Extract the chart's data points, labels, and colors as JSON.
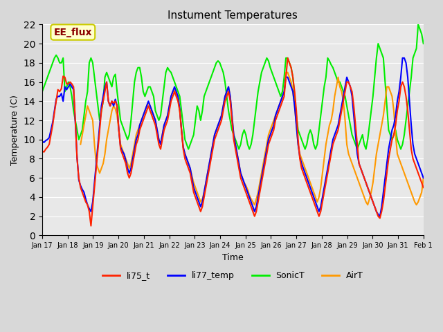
{
  "title": "Instument Temperatures",
  "xlabel": "Time",
  "ylabel": "Temperature (C)",
  "ylim": [
    0,
    22
  ],
  "yticks": [
    0,
    2,
    4,
    6,
    8,
    10,
    12,
    14,
    16,
    18,
    20,
    22
  ],
  "xtick_labels": [
    "Jan 17",
    "Jan 18",
    "Jan 19",
    "Jan 20",
    "Jan 21",
    "Jan 22",
    "Jan 23",
    "Jan 24",
    "Jan 25",
    "Jan 26",
    "Jan 27",
    "Jan 28",
    "Jan 29",
    "Jan 30",
    "Jan 31",
    "Feb 1"
  ],
  "bg_color": "#d8d8d8",
  "plot_bg_color": "#e8e8e8",
  "annotation_text": "EE_flux",
  "annotation_color": "#8b0000",
  "annotation_bg": "#ffffcc",
  "annotation_border": "#cccc00",
  "line_colors": {
    "li75_t": "#ff2200",
    "li77_temp": "#0000ff",
    "SonicT": "#00ee00",
    "AirT": "#ff9900"
  },
  "series": {
    "li75_t": [
      8.8,
      8.7,
      9.0,
      9.2,
      9.5,
      10.5,
      11.5,
      12.8,
      14.0,
      15.2,
      15.0,
      15.3,
      16.6,
      16.5,
      15.8,
      15.8,
      16.0,
      15.8,
      15.5,
      12.0,
      8.0,
      6.0,
      5.0,
      4.5,
      4.0,
      3.5,
      3.2,
      2.5,
      1.0,
      3.0,
      5.0,
      7.0,
      9.0,
      11.0,
      13.0,
      14.0,
      15.0,
      16.0,
      14.0,
      13.5,
      14.0,
      13.8,
      14.0,
      13.5,
      11.0,
      9.0,
      8.5,
      8.0,
      7.5,
      6.5,
      6.0,
      6.5,
      7.5,
      8.5,
      9.5,
      10.0,
      11.0,
      11.5,
      12.0,
      12.5,
      13.0,
      13.5,
      13.0,
      12.5,
      12.0,
      11.5,
      10.5,
      9.5,
      9.0,
      10.0,
      11.0,
      11.5,
      12.0,
      13.0,
      14.0,
      14.5,
      15.0,
      14.5,
      14.0,
      13.0,
      11.0,
      9.0,
      8.0,
      7.5,
      7.0,
      6.5,
      5.5,
      4.5,
      4.0,
      3.5,
      3.0,
      2.5,
      3.0,
      4.0,
      5.0,
      6.0,
      7.0,
      8.0,
      9.0,
      10.0,
      10.5,
      11.0,
      11.5,
      12.0,
      13.0,
      14.0,
      14.5,
      15.0,
      14.0,
      12.0,
      10.0,
      9.0,
      8.0,
      7.0,
      6.0,
      5.5,
      5.0,
      4.5,
      4.0,
      3.5,
      3.0,
      2.5,
      2.0,
      2.5,
      3.5,
      4.5,
      5.5,
      6.5,
      7.5,
      8.5,
      9.5,
      10.0,
      10.5,
      11.0,
      12.0,
      12.5,
      13.0,
      13.5,
      14.0,
      14.5,
      16.5,
      18.5,
      18.0,
      17.5,
      16.5,
      15.0,
      13.0,
      10.0,
      8.0,
      7.0,
      6.5,
      6.0,
      5.5,
      5.0,
      4.5,
      4.0,
      3.5,
      3.0,
      2.5,
      2.0,
      2.5,
      3.5,
      4.5,
      5.5,
      6.5,
      7.5,
      8.5,
      9.5,
      10.0,
      10.5,
      11.0,
      12.0,
      13.0,
      14.0,
      15.0,
      16.0,
      16.0,
      15.5,
      15.0,
      13.5,
      11.5,
      9.5,
      7.5,
      7.0,
      6.5,
      6.0,
      5.5,
      5.0,
      4.5,
      4.0,
      3.5,
      3.0,
      2.5,
      2.0,
      1.8,
      2.5,
      3.5,
      5.0,
      6.5,
      8.0,
      9.0,
      10.0,
      10.5,
      11.5,
      13.0,
      14.0,
      15.5,
      16.0,
      15.5,
      14.5,
      13.0,
      11.0,
      9.0,
      8.0,
      7.5,
      7.0,
      6.5,
      6.0,
      5.5,
      5.0,
      4.5,
      4.0,
      3.5,
      3.2,
      2.8,
      2.5,
      3.0,
      3.5,
      4.0
    ],
    "li77_temp": [
      9.8,
      9.7,
      9.9,
      10.0,
      10.2,
      11.0,
      11.8,
      13.0,
      14.2,
      14.5,
      14.5,
      14.8,
      14.0,
      15.5,
      15.2,
      15.5,
      15.8,
      15.5,
      15.2,
      11.8,
      8.2,
      5.8,
      5.2,
      4.8,
      4.5,
      3.8,
      3.2,
      2.8,
      2.5,
      3.5,
      5.5,
      7.5,
      9.5,
      11.5,
      13.5,
      14.5,
      15.5,
      16.0,
      14.0,
      13.5,
      14.0,
      13.5,
      14.2,
      13.5,
      11.0,
      9.2,
      8.8,
      8.5,
      7.8,
      7.0,
      6.5,
      7.0,
      8.0,
      9.0,
      10.0,
      10.5,
      11.5,
      12.0,
      12.5,
      13.0,
      13.5,
      14.0,
      13.5,
      13.0,
      12.5,
      12.0,
      11.0,
      10.0,
      9.5,
      10.5,
      11.5,
      12.0,
      12.5,
      13.5,
      14.5,
      15.0,
      15.5,
      15.0,
      14.5,
      13.2,
      11.0,
      9.2,
      8.5,
      8.0,
      7.5,
      7.0,
      6.0,
      5.0,
      4.5,
      4.0,
      3.5,
      3.0,
      3.5,
      4.5,
      5.5,
      6.5,
      7.5,
      8.5,
      9.5,
      10.5,
      11.0,
      11.5,
      12.0,
      12.5,
      13.5,
      14.5,
      15.0,
      15.5,
      14.5,
      12.5,
      10.5,
      9.5,
      8.5,
      7.5,
      6.5,
      6.0,
      5.5,
      5.0,
      4.5,
      4.0,
      3.5,
      3.0,
      2.5,
      3.0,
      4.0,
      5.0,
      6.0,
      7.0,
      8.0,
      9.0,
      10.0,
      10.5,
      11.0,
      11.5,
      12.5,
      13.0,
      13.5,
      14.0,
      14.5,
      15.0,
      16.5,
      16.5,
      16.0,
      15.5,
      15.0,
      13.5,
      11.5,
      9.5,
      8.2,
      7.5,
      7.0,
      6.5,
      6.0,
      5.5,
      5.0,
      4.5,
      4.0,
      3.5,
      3.0,
      2.5,
      3.0,
      4.0,
      5.0,
      6.0,
      7.0,
      8.0,
      9.0,
      10.0,
      10.5,
      11.0,
      11.5,
      12.5,
      13.5,
      14.5,
      15.5,
      16.5,
      16.0,
      15.5,
      14.5,
      12.5,
      10.5,
      8.5,
      7.5,
      7.0,
      6.5,
      6.0,
      5.5,
      5.0,
      4.5,
      4.0,
      3.5,
      3.0,
      2.5,
      2.2,
      2.0,
      3.0,
      4.5,
      6.0,
      7.5,
      9.0,
      10.0,
      11.0,
      11.5,
      12.5,
      14.0,
      15.0,
      16.5,
      18.5,
      18.5,
      18.0,
      16.5,
      14.0,
      11.5,
      9.5,
      8.5,
      8.0,
      7.5,
      7.0,
      6.5,
      6.0,
      5.5,
      5.0,
      4.5,
      4.0,
      3.5,
      3.2,
      3.5,
      4.0,
      4.5
    ],
    "SonicT": [
      15.0,
      15.5,
      16.0,
      16.5,
      17.0,
      17.5,
      18.0,
      18.5,
      18.8,
      18.5,
      18.0,
      18.0,
      18.5,
      15.0,
      15.5,
      16.0,
      15.5,
      14.5,
      13.0,
      12.0,
      11.0,
      10.0,
      10.5,
      11.0,
      12.5,
      14.0,
      15.0,
      18.0,
      18.5,
      18.0,
      16.5,
      15.0,
      13.5,
      12.0,
      13.0,
      14.0,
      16.5,
      17.0,
      16.5,
      16.0,
      15.5,
      16.5,
      16.8,
      15.0,
      13.5,
      12.0,
      11.5,
      11.0,
      10.5,
      10.0,
      10.5,
      12.0,
      14.0,
      16.0,
      17.0,
      17.5,
      17.5,
      16.5,
      15.0,
      14.5,
      15.0,
      15.5,
      15.5,
      15.0,
      14.5,
      13.0,
      12.5,
      12.0,
      12.5,
      14.0,
      15.5,
      17.0,
      17.5,
      17.2,
      17.0,
      16.5,
      16.0,
      15.5,
      15.0,
      14.5,
      13.0,
      11.5,
      10.0,
      9.5,
      9.0,
      9.5,
      10.0,
      10.5,
      12.0,
      13.5,
      13.0,
      12.0,
      13.0,
      14.5,
      15.0,
      15.5,
      16.0,
      16.5,
      17.0,
      17.5,
      18.0,
      18.2,
      18.0,
      17.5,
      17.0,
      16.0,
      14.5,
      13.0,
      12.0,
      11.0,
      10.5,
      10.0,
      9.5,
      9.0,
      9.5,
      10.5,
      11.0,
      10.5,
      9.5,
      9.0,
      9.5,
      10.5,
      12.0,
      13.5,
      15.0,
      16.0,
      17.0,
      17.5,
      18.0,
      18.5,
      18.2,
      17.5,
      17.0,
      16.5,
      16.0,
      15.5,
      15.0,
      14.5,
      15.0,
      16.5,
      18.5,
      18.5,
      18.0,
      17.5,
      16.5,
      14.5,
      12.5,
      11.0,
      10.5,
      10.0,
      9.5,
      9.0,
      9.5,
      10.5,
      11.0,
      10.5,
      9.5,
      9.0,
      9.5,
      11.0,
      12.5,
      14.0,
      15.5,
      16.5,
      18.5,
      18.2,
      17.8,
      17.5,
      17.0,
      16.5,
      16.0,
      16.0,
      15.5,
      15.0,
      14.5,
      13.5,
      12.5,
      11.5,
      10.5,
      10.0,
      9.5,
      9.0,
      9.5,
      10.0,
      10.5,
      9.5,
      9.0,
      10.0,
      11.5,
      13.0,
      14.5,
      16.5,
      18.5,
      20.0,
      19.5,
      19.0,
      18.5,
      16.0,
      13.5,
      11.0,
      10.5,
      10.0,
      10.5,
      11.0,
      10.0,
      9.5,
      9.0,
      9.5,
      10.5,
      12.0,
      13.5,
      15.0,
      16.5,
      18.5,
      19.0,
      19.5,
      22.0,
      21.5,
      21.0,
      20.0,
      18.5,
      15.0,
      12.5,
      10.0
    ],
    "AirT": [
      null,
      null,
      null,
      null,
      null,
      null,
      null,
      null,
      null,
      null,
      null,
      null,
      null,
      null,
      null,
      null,
      null,
      null,
      null,
      null,
      null,
      null,
      9.5,
      10.5,
      11.5,
      12.5,
      13.5,
      13.0,
      12.5,
      12.0,
      9.5,
      7.5,
      7.0,
      6.5,
      7.0,
      7.5,
      8.5,
      10.0,
      11.0,
      12.0,
      13.0,
      13.5,
      13.2,
      12.5,
      11.0,
      9.5,
      9.0,
      8.5,
      8.0,
      7.5,
      7.0,
      7.5,
      8.5,
      9.5,
      10.5,
      11.0,
      11.5,
      12.0,
      12.5,
      13.0,
      13.5,
      13.8,
      13.5,
      13.0,
      12.5,
      12.0,
      11.0,
      10.0,
      9.5,
      10.5,
      11.5,
      12.0,
      12.5,
      13.5,
      14.5,
      15.0,
      15.2,
      14.8,
      14.2,
      13.0,
      11.0,
      9.2,
      8.5,
      8.0,
      7.5,
      7.0,
      6.2,
      5.5,
      5.0,
      4.5,
      4.0,
      3.5,
      3.8,
      4.5,
      5.5,
      6.5,
      7.5,
      8.5,
      9.5,
      10.5,
      11.0,
      11.5,
      12.0,
      12.5,
      13.5,
      14.5,
      15.0,
      15.5,
      14.5,
      12.5,
      10.5,
      9.5,
      8.5,
      7.5,
      6.5,
      6.0,
      5.5,
      5.2,
      4.8,
      4.2,
      3.8,
      3.5,
      3.2,
      3.8,
      4.5,
      5.5,
      6.5,
      7.5,
      8.5,
      9.5,
      10.5,
      11.0,
      11.5,
      12.0,
      12.5,
      13.0,
      13.5,
      14.0,
      14.5,
      15.0,
      17.0,
      17.0,
      16.5,
      16.0,
      15.0,
      13.5,
      11.5,
      9.5,
      8.5,
      8.0,
      7.5,
      7.0,
      6.5,
      6.0,
      5.5,
      5.0,
      4.5,
      4.0,
      3.5,
      4.0,
      5.0,
      6.5,
      8.0,
      9.5,
      10.5,
      11.5,
      12.0,
      13.0,
      14.5,
      15.5,
      16.5,
      15.5,
      15.0,
      14.0,
      12.0,
      9.5,
      8.5,
      8.0,
      7.5,
      7.0,
      6.5,
      6.0,
      5.5,
      5.0,
      4.5,
      4.0,
      3.5,
      3.2,
      3.8,
      4.5,
      5.5,
      7.0,
      8.5,
      9.5,
      10.5,
      11.5,
      12.5,
      14.0,
      15.5,
      15.5,
      15.0,
      14.5,
      13.0,
      10.5,
      8.5,
      8.0,
      7.5,
      7.0,
      6.5,
      6.0,
      5.5,
      5.0,
      4.5,
      4.0,
      3.5,
      3.2,
      3.5,
      4.0,
      4.5,
      6.0
    ]
  }
}
